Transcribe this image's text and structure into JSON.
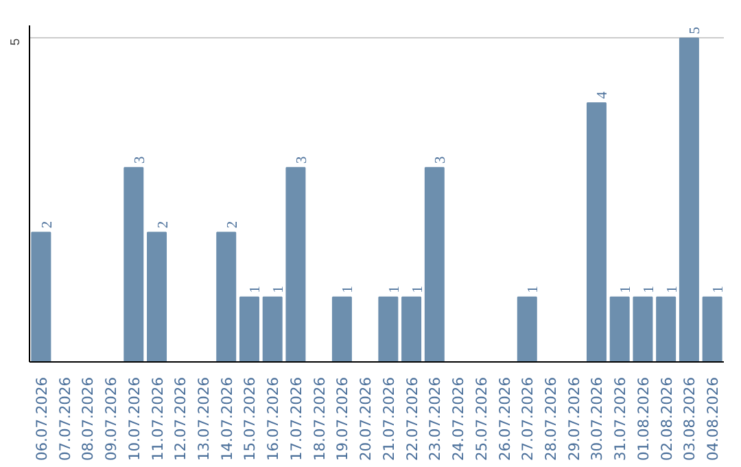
{
  "chart_data": {
    "type": "bar",
    "categories": [
      "06.07.2026",
      "07.07.2026",
      "08.07.2026",
      "09.07.2026",
      "10.07.2026",
      "11.07.2026",
      "12.07.2026",
      "13.07.2026",
      "14.07.2026",
      "15.07.2026",
      "16.07.2026",
      "17.07.2026",
      "18.07.2026",
      "19.07.2026",
      "20.07.2026",
      "21.07.2026",
      "22.07.2026",
      "23.07.2026",
      "24.07.2026",
      "25.07.2026",
      "26.07.2026",
      "27.07.2026",
      "28.07.2026",
      "29.07.2026",
      "30.07.2026",
      "31.07.2026",
      "01.08.2026",
      "02.08.2026",
      "03.08.2026",
      "04.08.2026"
    ],
    "values": [
      2,
      0,
      0,
      0,
      3,
      2,
      0,
      0,
      2,
      1,
      1,
      3,
      0,
      1,
      0,
      1,
      1,
      3,
      0,
      0,
      0,
      1,
      0,
      0,
      4,
      1,
      1,
      1,
      5,
      1
    ],
    "value_labels": [
      "2",
      null,
      null,
      null,
      "3",
      "2",
      null,
      null,
      "2",
      "1",
      "1",
      "3",
      null,
      "1",
      null,
      "1",
      "1",
      "3",
      null,
      null,
      null,
      "1",
      null,
      null,
      "4",
      "1",
      "1",
      "1",
      "5",
      "1"
    ],
    "color": "#6d8fae",
    "ylim": [
      0,
      5.2
    ],
    "yticks": [
      5
    ],
    "grid": "y"
  }
}
